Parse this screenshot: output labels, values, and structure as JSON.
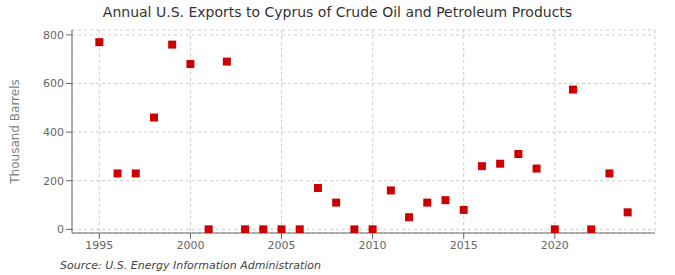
{
  "chart_data": {
    "type": "scatter",
    "title": "Annual U.S. Exports to Cyprus of Crude Oil and Petroleum Products",
    "ylabel": "Thousand Barrels",
    "annotations": [
      "Source: U.S. Energy Information Administration"
    ],
    "x": [
      1995,
      1996,
      1997,
      1998,
      1999,
      2000,
      2001,
      2002,
      2003,
      2004,
      2005,
      2006,
      2007,
      2008,
      2009,
      2010,
      2011,
      2012,
      2013,
      2014,
      2015,
      2016,
      2017,
      2018,
      2019,
      2020,
      2021,
      2022,
      2023,
      2024
    ],
    "values": [
      770,
      230,
      230,
      460,
      760,
      680,
      0,
      690,
      0,
      0,
      0,
      0,
      170,
      110,
      0,
      0,
      160,
      50,
      110,
      120,
      80,
      260,
      270,
      310,
      250,
      0,
      575,
      0,
      230,
      70
    ],
    "color": "#cc0000",
    "marker": "square",
    "xlim": [
      1993.5,
      2025.5
    ],
    "xticks": [
      1995,
      2000,
      2005,
      2010,
      2015,
      2020
    ],
    "ylim": [
      -15,
      820
    ],
    "yticks": [
      0,
      200,
      400,
      600,
      800
    ],
    "grid": true
  }
}
